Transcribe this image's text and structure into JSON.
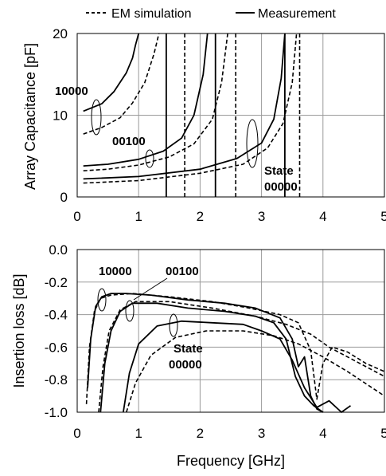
{
  "legend": {
    "dashed_label": "EM simulation",
    "solid_label": "Measurement"
  },
  "xlabel": "Frequency [GHz]",
  "chart_data": [
    {
      "type": "line",
      "ylabel": "Array Capacitance [pF]",
      "xlim": [
        0,
        5
      ],
      "ylim": [
        0,
        20
      ],
      "xticks": [
        "0",
        "1",
        "2",
        "3",
        "4",
        "5"
      ],
      "yticks": [
        "0",
        "10",
        "20"
      ],
      "grid": true,
      "annotations": [
        {
          "text": "10000"
        },
        {
          "text": "00100"
        },
        {
          "text": "State"
        },
        {
          "text": "00000"
        }
      ],
      "series": [
        {
          "style": "solid",
          "x": [
            0.1,
            0.4,
            0.6,
            0.8,
            0.9,
            0.95,
            1.0
          ],
          "y": [
            10.5,
            11.4,
            12.9,
            15.2,
            17.0,
            18.6,
            20
          ]
        },
        {
          "style": "dashed",
          "x": [
            0.1,
            0.4,
            0.7,
            0.9,
            1.1,
            1.25,
            1.33
          ],
          "y": [
            7.7,
            8.5,
            9.7,
            11.5,
            14.0,
            17.5,
            20
          ]
        },
        {
          "style": "solid",
          "x": [
            0.1,
            0.5,
            1.0,
            1.4,
            1.7,
            1.9,
            2.05,
            2.12
          ],
          "y": [
            3.8,
            4.0,
            4.6,
            5.6,
            7.2,
            10.0,
            15.0,
            20
          ]
        },
        {
          "style": "dashed",
          "x": [
            0.1,
            0.5,
            1.0,
            1.5,
            1.9,
            2.2,
            2.35,
            2.45
          ],
          "y": [
            3.2,
            3.4,
            3.9,
            4.9,
            6.5,
            9.5,
            14.0,
            20
          ]
        },
        {
          "style": "solid",
          "x": [
            0.1,
            1.0,
            2.0,
            2.6,
            3.0,
            3.2,
            3.32,
            3.38
          ],
          "y": [
            2.2,
            2.5,
            3.4,
            4.7,
            6.6,
            9.5,
            14.5,
            20
          ]
        },
        {
          "style": "dashed",
          "x": [
            0.1,
            1.0,
            2.0,
            2.7,
            3.1,
            3.35,
            3.5,
            3.57
          ],
          "y": [
            1.7,
            2.0,
            2.9,
            4.0,
            6.0,
            9.0,
            14.0,
            20
          ]
        },
        {
          "style": "solid",
          "x": [
            1.45,
            1.45
          ],
          "y": [
            0,
            20
          ]
        },
        {
          "style": "dashed",
          "x": [
            1.75,
            1.75
          ],
          "y": [
            0,
            20
          ]
        },
        {
          "style": "solid",
          "x": [
            2.25,
            2.25
          ],
          "y": [
            0,
            20
          ]
        },
        {
          "style": "dashed",
          "x": [
            2.58,
            2.58
          ],
          "y": [
            0,
            20
          ]
        },
        {
          "style": "solid",
          "x": [
            3.38,
            3.38
          ],
          "y": [
            0,
            20
          ]
        },
        {
          "style": "dashed",
          "x": [
            3.62,
            3.62
          ],
          "y": [
            0,
            20
          ]
        }
      ]
    },
    {
      "type": "line",
      "ylabel": "Insertion loss [dB]",
      "xlim": [
        0,
        5
      ],
      "ylim": [
        -1.0,
        0.0
      ],
      "xticks": [
        "0",
        "1",
        "2",
        "3",
        "4",
        "5"
      ],
      "yticks": [
        "0.0",
        "-0.2",
        "-0.4",
        "-0.6",
        "-0.8",
        "-1.0"
      ],
      "grid": true,
      "annotations": [
        {
          "text": "10000"
        },
        {
          "text": "00100"
        },
        {
          "text": "State"
        },
        {
          "text": "00000"
        }
      ],
      "series": [
        {
          "style": "solid",
          "x": [
            0.17,
            0.22,
            0.3,
            0.4,
            0.55,
            0.8,
            1.2,
            1.8,
            2.4,
            2.9,
            3.3,
            3.5,
            3.6,
            3.7,
            3.8,
            3.9,
            4.0
          ],
          "y": [
            -0.85,
            -0.55,
            -0.35,
            -0.29,
            -0.27,
            -0.27,
            -0.28,
            -0.31,
            -0.33,
            -0.36,
            -0.42,
            -0.55,
            -0.72,
            -0.66,
            -0.9,
            -0.98,
            -1.0
          ]
        },
        {
          "style": "dashed",
          "x": [
            0.15,
            0.2,
            0.28,
            0.38,
            0.55,
            0.9,
            1.5,
            2.2,
            2.8,
            3.3,
            3.6,
            3.8,
            3.9,
            4.0,
            4.15,
            4.4,
            4.7,
            5.0
          ],
          "y": [
            -0.95,
            -0.6,
            -0.38,
            -0.3,
            -0.28,
            -0.27,
            -0.29,
            -0.32,
            -0.36,
            -0.4,
            -0.45,
            -0.62,
            -0.92,
            -0.7,
            -0.6,
            -0.63,
            -0.7,
            -0.75
          ]
        },
        {
          "style": "solid",
          "x": [
            0.38,
            0.45,
            0.55,
            0.7,
            0.9,
            1.3,
            1.8,
            2.4,
            2.9,
            3.2,
            3.4,
            3.55,
            3.7,
            3.85,
            4.0
          ],
          "y": [
            -1.0,
            -0.7,
            -0.5,
            -0.38,
            -0.33,
            -0.33,
            -0.36,
            -0.38,
            -0.41,
            -0.45,
            -0.55,
            -0.78,
            -0.9,
            -0.96,
            -1.0
          ]
        },
        {
          "style": "dashed",
          "x": [
            0.35,
            0.42,
            0.52,
            0.7,
            0.95,
            1.5,
            2.2,
            2.9,
            3.4,
            3.8,
            4.1,
            4.5,
            5.0
          ],
          "y": [
            -1.0,
            -0.72,
            -0.5,
            -0.37,
            -0.32,
            -0.32,
            -0.36,
            -0.41,
            -0.46,
            -0.52,
            -0.6,
            -0.68,
            -0.78
          ]
        },
        {
          "style": "solid",
          "x": [
            0.75,
            0.85,
            1.0,
            1.3,
            1.7,
            2.2,
            2.7,
            3.0,
            3.3,
            3.5,
            3.7,
            3.9,
            4.1,
            4.3,
            4.45
          ],
          "y": [
            -1.0,
            -0.76,
            -0.58,
            -0.47,
            -0.44,
            -0.45,
            -0.46,
            -0.5,
            -0.55,
            -0.68,
            -0.85,
            -0.97,
            -0.93,
            -1.0,
            -0.96
          ]
        },
        {
          "style": "dashed",
          "x": [
            0.8,
            0.95,
            1.2,
            1.6,
            2.1,
            2.7,
            3.2,
            3.6,
            4.0,
            4.4,
            4.8,
            5.0
          ],
          "y": [
            -1.0,
            -0.82,
            -0.65,
            -0.54,
            -0.5,
            -0.5,
            -0.53,
            -0.58,
            -0.66,
            -0.75,
            -0.85,
            -0.9
          ]
        }
      ]
    }
  ]
}
